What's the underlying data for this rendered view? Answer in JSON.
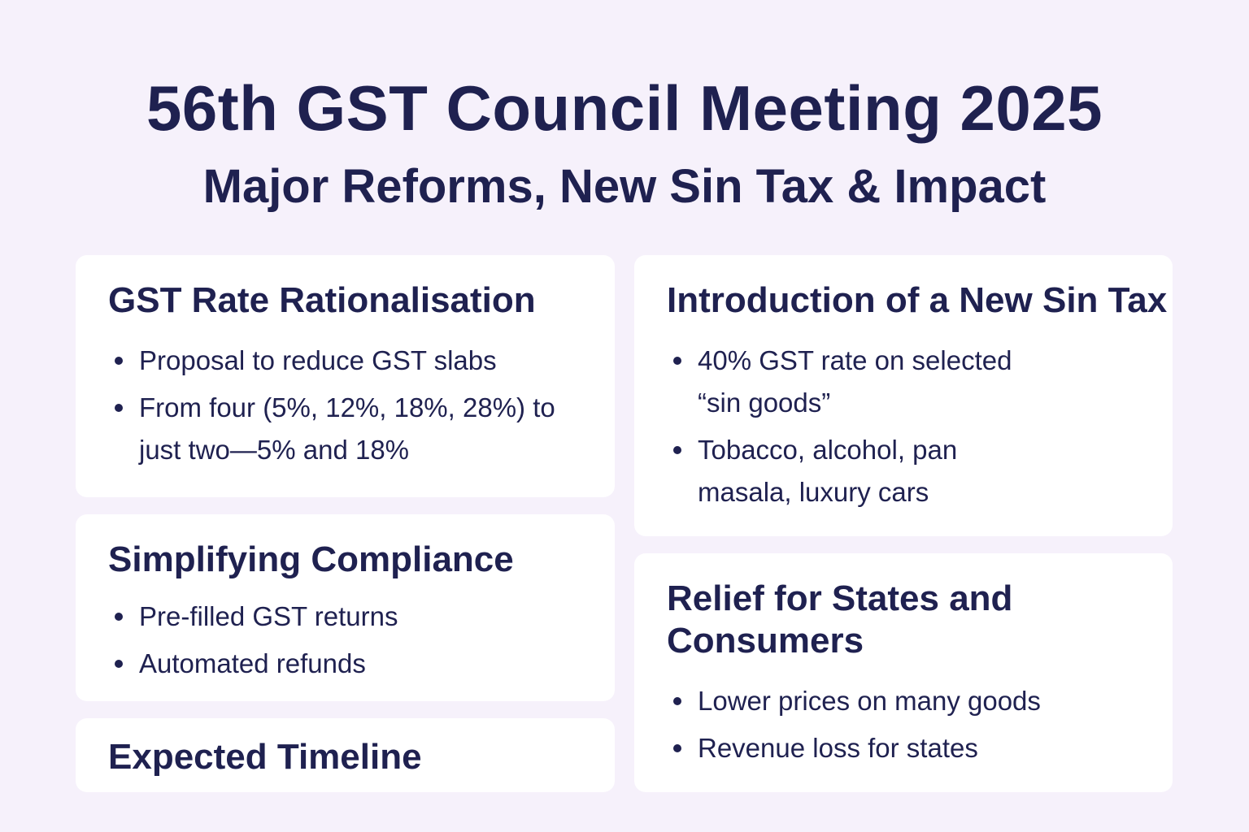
{
  "header": {
    "title": "56th GST Council Meeting 2025",
    "subtitle": "Major Reforms, New Sin Tax & Impact"
  },
  "cards": {
    "rate": {
      "heading": "GST Rate Rationalisation",
      "items": [
        "Proposal to reduce GST slabs",
        "From four (5%, 12%, 18%, 28%) to just two—5% and 18%"
      ]
    },
    "sin_tax": {
      "heading": "Introduction of a New Sin Tax",
      "items": [
        "40% GST rate on selected “sin goods”",
        "Tobacco, alcohol, pan masala, luxury cars"
      ]
    },
    "compliance": {
      "heading": "Simplifying Compliance",
      "items": [
        "Pre-filled GST returns",
        "Automated refunds"
      ]
    },
    "relief": {
      "heading": "Relief for States and Consumers",
      "items": [
        "Lower prices on many goods",
        "Revenue loss for states"
      ]
    },
    "timeline": {
      "heading": "Expected Timeline"
    }
  }
}
